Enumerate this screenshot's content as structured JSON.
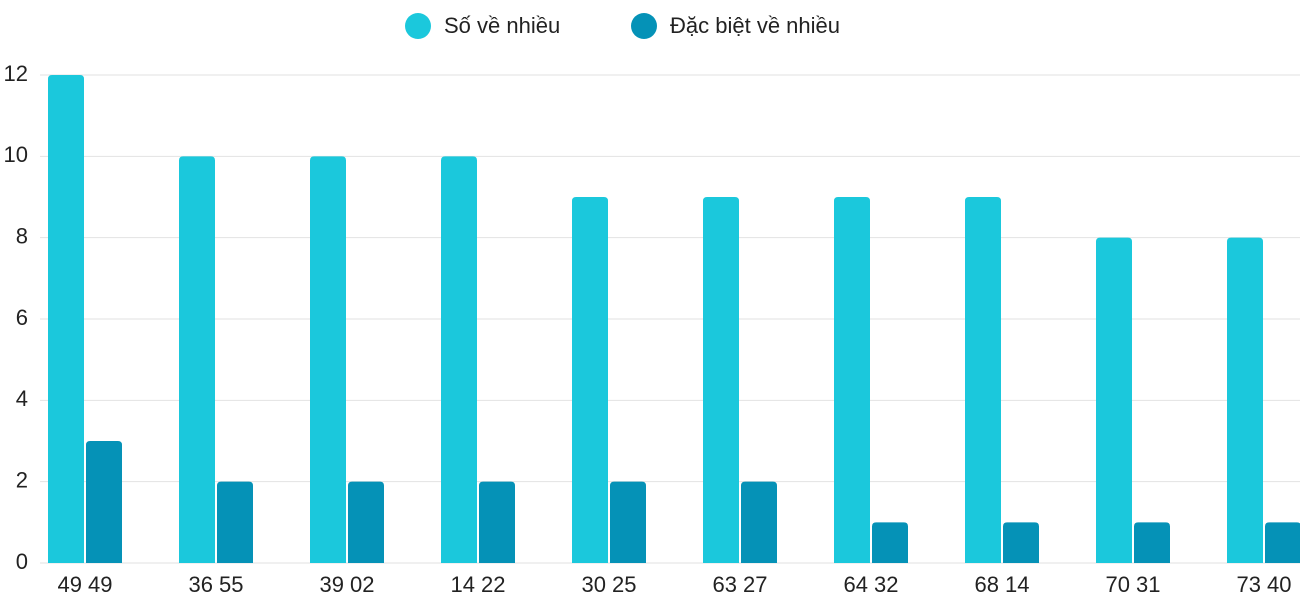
{
  "chart_data": {
    "type": "bar",
    "categories": [
      "49 49",
      "36 55",
      "39 02",
      "14 22",
      "30 25",
      "63 27",
      "64 32",
      "68 14",
      "70 31",
      "73 40"
    ],
    "series": [
      {
        "name": "Số về nhiều",
        "color": "#1bc8dc",
        "values": [
          12,
          10,
          10,
          10,
          9,
          9,
          9,
          9,
          8,
          8
        ]
      },
      {
        "name": "Đặc biệt về nhiều",
        "color": "#0592b7",
        "values": [
          3,
          2,
          2,
          2,
          2,
          2,
          1,
          1,
          1,
          1
        ]
      }
    ],
    "ylim": [
      0,
      12
    ],
    "yticks": [
      0,
      2,
      4,
      6,
      8,
      10,
      12
    ],
    "grid": true,
    "legend": "top"
  }
}
